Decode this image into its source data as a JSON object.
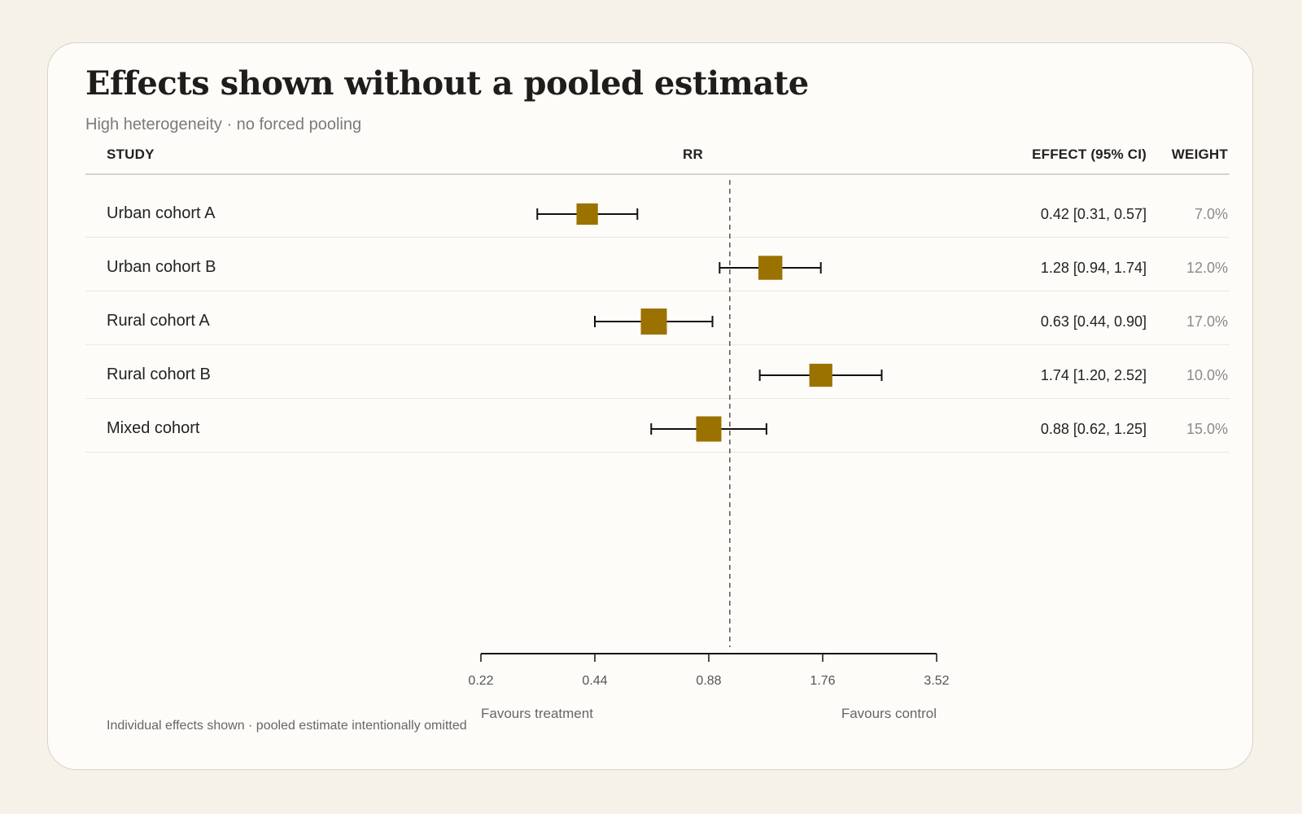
{
  "title": "Effects shown without a pooled estimate",
  "subtitle": "High heterogeneity · no forced pooling",
  "headers": {
    "study": "STUDY",
    "rr": "RR",
    "effect": "EFFECT (95% CI)",
    "weight": "WEIGHT"
  },
  "rows": [
    {
      "label": "Urban cohort A",
      "effect_text": "0.42 [0.31, 0.57]",
      "weight_text": "7.0%"
    },
    {
      "label": "Urban cohort B",
      "effect_text": "1.28 [0.94, 1.74]",
      "weight_text": "12.0%"
    },
    {
      "label": "Rural cohort A",
      "effect_text": "0.63 [0.44, 0.90]",
      "weight_text": "17.0%"
    },
    {
      "label": "Rural cohort B",
      "effect_text": "1.74 [1.20, 2.52]",
      "weight_text": "10.0%"
    },
    {
      "label": "Mixed cohort",
      "effect_text": "0.88 [0.62, 1.25]",
      "weight_text": "15.0%"
    }
  ],
  "footnote": "Individual effects shown · pooled estimate intentionally omitted",
  "chart_data": {
    "type": "scatter",
    "title": "Effects shown without a pooled estimate",
    "subtitle": "High heterogeneity · no forced pooling",
    "xlabel": "RR",
    "x_scale": "log",
    "xlim": [
      0.22,
      3.52
    ],
    "xticks": [
      0.22,
      0.44,
      0.88,
      1.76,
      3.52
    ],
    "xtick_labels": [
      "0.22",
      "0.44",
      "0.88",
      "1.76",
      "3.52"
    ],
    "null_line": 1.0,
    "left_annotation": "Favours treatment",
    "right_annotation": "Favours control",
    "marker_color": "#9b7200",
    "studies": [
      {
        "name": "Urban cohort A",
        "estimate": 0.42,
        "ci_low": 0.31,
        "ci_high": 0.57,
        "weight": 7.0
      },
      {
        "name": "Urban cohort B",
        "estimate": 1.28,
        "ci_low": 0.94,
        "ci_high": 1.74,
        "weight": 12.0
      },
      {
        "name": "Rural cohort A",
        "estimate": 0.63,
        "ci_low": 0.44,
        "ci_high": 0.9,
        "weight": 17.0
      },
      {
        "name": "Rural cohort B",
        "estimate": 1.74,
        "ci_low": 1.2,
        "ci_high": 2.52,
        "weight": 10.0
      },
      {
        "name": "Mixed cohort",
        "estimate": 0.88,
        "ci_low": 0.62,
        "ci_high": 1.25,
        "weight": 15.0
      }
    ]
  }
}
